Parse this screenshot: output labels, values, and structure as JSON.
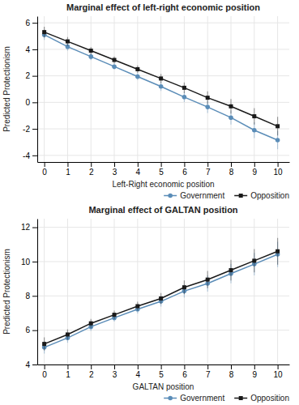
{
  "chart_data": [
    {
      "type": "line",
      "title": "Marginal effect of left-right economic position",
      "x_label": "Left-Right economic position",
      "y_label": "Predicted Protectionism",
      "x": [
        0,
        1,
        2,
        3,
        4,
        5,
        6,
        7,
        8,
        9,
        10
      ],
      "xlim": [
        -0.3,
        10.5
      ],
      "xticks": [
        0,
        1,
        2,
        3,
        4,
        5,
        6,
        7,
        8,
        9,
        10
      ],
      "ylim": [
        -4.5,
        6.5
      ],
      "yticks": [
        -4,
        -2,
        0,
        2,
        4,
        6
      ],
      "grid": true,
      "legend": "lower right",
      "series": [
        {
          "name": "Government",
          "color": "#5b8db8",
          "marker": "circle",
          "line_style": "solid",
          "values": [
            5.1,
            4.2,
            3.45,
            2.7,
            1.95,
            1.2,
            0.4,
            -0.35,
            -1.15,
            -2.1,
            -2.85
          ],
          "errors": [
            0.38,
            0.3,
            0.26,
            0.24,
            0.26,
            0.33,
            0.38,
            0.45,
            0.53,
            0.6,
            0.68
          ]
        },
        {
          "name": "Opposition",
          "color": "#1a1a1a",
          "marker": "square",
          "line_style": "solid",
          "values": [
            5.3,
            4.6,
            3.9,
            3.2,
            2.5,
            1.8,
            1.1,
            0.35,
            -0.3,
            -1.05,
            -1.8
          ],
          "errors": [
            0.4,
            0.33,
            0.28,
            0.26,
            0.28,
            0.35,
            0.4,
            0.48,
            0.55,
            0.62,
            0.7
          ]
        }
      ]
    },
    {
      "type": "line",
      "title": "Marginal effect of GALTAN position",
      "x_label": "GALTAN position",
      "y_label": "Predicted Protectionism",
      "x": [
        0,
        1,
        2,
        3,
        4,
        5,
        6,
        7,
        8,
        9,
        10
      ],
      "xlim": [
        -0.3,
        10.5
      ],
      "xticks": [
        0,
        1,
        2,
        3,
        4,
        5,
        6,
        7,
        8,
        9,
        10
      ],
      "ylim": [
        4.0,
        12.5
      ],
      "yticks": [
        4,
        6,
        8,
        10,
        12
      ],
      "grid": true,
      "legend": "lower right",
      "series": [
        {
          "name": "Government",
          "color": "#5b8db8",
          "marker": "circle",
          "line_style": "solid",
          "values": [
            5.0,
            5.55,
            6.2,
            6.72,
            7.22,
            7.68,
            8.28,
            8.72,
            9.3,
            9.85,
            10.42
          ],
          "errors": [
            0.36,
            0.28,
            0.24,
            0.22,
            0.24,
            0.3,
            0.38,
            0.47,
            0.57,
            0.65,
            0.74
          ]
        },
        {
          "name": "Opposition",
          "color": "#1a1a1a",
          "marker": "square",
          "line_style": "solid",
          "values": [
            5.2,
            5.75,
            6.4,
            6.9,
            7.4,
            7.85,
            8.5,
            8.95,
            9.5,
            10.05,
            10.6
          ],
          "errors": [
            0.38,
            0.3,
            0.26,
            0.24,
            0.26,
            0.32,
            0.4,
            0.5,
            0.6,
            0.68,
            0.78
          ]
        }
      ]
    }
  ]
}
